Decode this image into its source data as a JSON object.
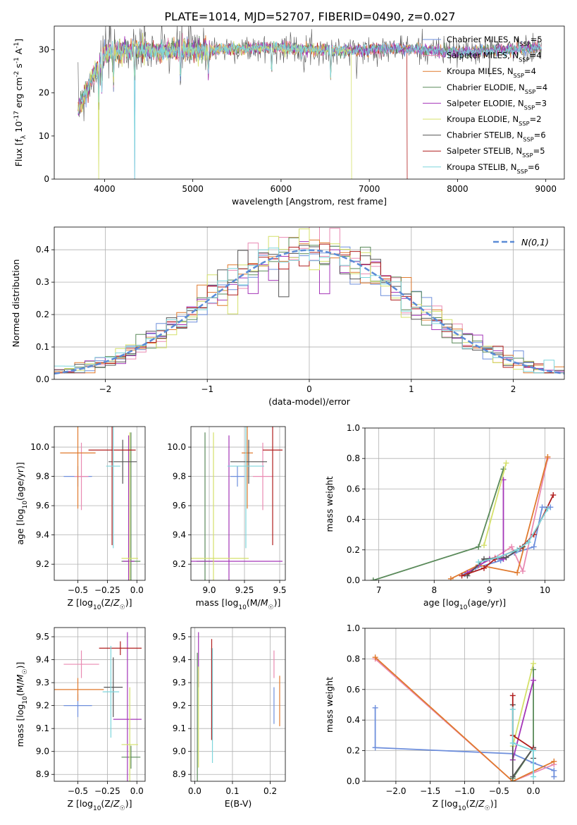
{
  "figure": {
    "title": "PLATE=1014, MJD=52707, FIBERID=0490, z=0.027"
  },
  "colors": {
    "Chabrier MILES": "#6e8fdc",
    "Salpeter MILES": "#e98ab2",
    "Kroupa MILES": "#e07a2e",
    "Chabrier ELODIE": "#5a8a5a",
    "Salpeter ELODIE": "#a436b8",
    "Kroupa ELODIE": "#d4e06a",
    "Chabrier STELIB": "#555555",
    "Salpeter STELIB": "#b01e1e",
    "Kroupa STELIB": "#7ed6dc"
  },
  "chart_data": [
    {
      "type": "line",
      "xlabel": "wavelength [Angstrom, rest frame]",
      "ylabel": "Flux [f_λ 10^-17 erg cm^-2 s^-1 A^-1]",
      "xlim": [
        3430,
        9210
      ],
      "ylim": [
        0,
        35.5
      ],
      "xticks": [
        4000,
        5000,
        6000,
        7000,
        8000,
        9000
      ],
      "yticks": [
        0,
        10,
        20,
        30
      ],
      "grid": false,
      "legend": "top-right",
      "legend_entries": [
        {
          "name": "Chabrier MILES",
          "nssp": "5"
        },
        {
          "name": "Salpeter MILES",
          "nssp": "4"
        },
        {
          "name": "Kroupa MILES",
          "nssp": "4"
        },
        {
          "name": "Chabrier ELODIE",
          "nssp": "4"
        },
        {
          "name": "Salpeter ELODIE",
          "nssp": "3"
        },
        {
          "name": "Kroupa ELODIE",
          "nssp": "2"
        },
        {
          "name": "Chabrier STELIB",
          "nssp": "6"
        },
        {
          "name": "Salpeter STELIB",
          "nssp": "5"
        },
        {
          "name": "Kroupa STELIB",
          "nssp": "6"
        }
      ],
      "continuum": [
        [
          3700,
          16
        ],
        [
          3760,
          19
        ],
        [
          3850,
          23
        ],
        [
          3950,
          27
        ],
        [
          4000,
          29
        ],
        [
          4100,
          29.5
        ],
        [
          4200,
          30
        ],
        [
          4400,
          30
        ],
        [
          4600,
          29.5
        ],
        [
          4800,
          30
        ],
        [
          5000,
          30
        ],
        [
          5200,
          30
        ],
        [
          5400,
          30.2
        ],
        [
          5600,
          30.2
        ],
        [
          5800,
          30.5
        ],
        [
          6000,
          30.5
        ],
        [
          6200,
          30.2
        ],
        [
          6400,
          30
        ],
        [
          6600,
          29.8
        ],
        [
          6800,
          29.8
        ],
        [
          7000,
          30
        ],
        [
          7200,
          30.2
        ],
        [
          7400,
          30.3
        ],
        [
          7600,
          30
        ],
        [
          7800,
          29.8
        ],
        [
          8000,
          29.5
        ],
        [
          8200,
          29.5
        ],
        [
          8400,
          30
        ],
        [
          8600,
          30
        ],
        [
          8800,
          30.3
        ],
        [
          8950,
          30.5
        ]
      ],
      "absorption_lines": [
        3934,
        3969,
        4102,
        4340,
        4861,
        5175,
        5893,
        6563
      ],
      "cutoffs": [
        {
          "series": "Salpeter STELIB",
          "x": 7430
        },
        {
          "series": "Kroupa ELODIE",
          "x": 6800
        }
      ]
    },
    {
      "type": "step",
      "xlabel": "(data-model)/error",
      "ylabel": "Normed distribution",
      "xlim": [
        -2.5,
        2.5
      ],
      "ylim": [
        0,
        0.47
      ],
      "xticks": [
        -2,
        -1,
        0,
        1,
        2
      ],
      "yticks": [
        0.0,
        0.1,
        0.2,
        0.3,
        0.4
      ],
      "grid": true,
      "legend": "top-right",
      "legend_label": "N(0,1)",
      "bin_width": 0.1,
      "bins_from": -2.5
    },
    {
      "type": "errorbar",
      "xlabel": "Z [log10(Z/Z☉)]",
      "ylabel": "age  [log10(age/yr)]",
      "xlim": [
        -0.7,
        0.07
      ],
      "ylim": [
        9.09,
        10.14
      ],
      "xticks": [
        -0.5,
        -0.25,
        0.0
      ],
      "yticks": [
        9.2,
        9.4,
        9.6,
        9.8,
        10.0
      ],
      "grid": true,
      "points": [
        {
          "series": "Chabrier MILES",
          "x": -0.5,
          "xerr": 0.12,
          "y": 9.8,
          "yerr": 0.07
        },
        {
          "series": "Salpeter MILES",
          "x": -0.47,
          "xerr": 0.06,
          "y": 9.8,
          "yerr": 0.23
        },
        {
          "series": "Kroupa MILES",
          "x": -0.5,
          "xerr": 0.15,
          "y": 9.96,
          "yerr": 0.38
        },
        {
          "series": "Chabrier ELODIE",
          "x": -0.05,
          "xerr": 0.08,
          "y": 9.22,
          "yerr": 0.88
        },
        {
          "series": "Salpeter ELODIE",
          "x": -0.07,
          "xerr": 0.05,
          "y": 9.22,
          "yerr": 0.86
        },
        {
          "series": "Kroupa ELODIE",
          "x": -0.06,
          "xerr": 0.07,
          "y": 9.24,
          "yerr": 0.86
        },
        {
          "series": "Chabrier STELIB",
          "x": -0.12,
          "xerr": 0.12,
          "y": 9.9,
          "yerr": 0.15
        },
        {
          "series": "Salpeter STELIB",
          "x": -0.21,
          "xerr": 0.2,
          "y": 9.98,
          "yerr": 0.65
        },
        {
          "series": "Kroupa STELIB",
          "x": -0.2,
          "xerr": 0.06,
          "y": 9.87,
          "yerr": 0.56
        }
      ]
    },
    {
      "type": "errorbar",
      "xlabel": "mass [log10(M/M☉)]",
      "ylabel": "",
      "xlim": [
        8.87,
        9.54
      ],
      "ylim": [
        9.09,
        10.14
      ],
      "xticks": [
        9.0,
        9.25,
        9.5
      ],
      "yticks": [
        9.2,
        9.4,
        9.6,
        9.8,
        10.0
      ],
      "grid": true,
      "points": [
        {
          "series": "Chabrier MILES",
          "x": 9.2,
          "xerr": 0.05,
          "y": 9.8,
          "yerr": 0.07
        },
        {
          "series": "Salpeter MILES",
          "x": 9.38,
          "xerr": 0.07,
          "y": 9.8,
          "yerr": 0.23
        },
        {
          "series": "Kroupa MILES",
          "x": 9.27,
          "xerr": 0.04,
          "y": 9.96,
          "yerr": 0.38
        },
        {
          "series": "Chabrier ELODIE",
          "x": 8.97,
          "xerr": 0.06,
          "y": 9.22,
          "yerr": 0.88
        },
        {
          "series": "Salpeter ELODIE",
          "x": 9.14,
          "xerr": 0.38,
          "y": 9.22,
          "yerr": 0.86
        },
        {
          "series": "Kroupa ELODIE",
          "x": 9.03,
          "xerr": 0.25,
          "y": 9.24,
          "yerr": 0.86
        },
        {
          "series": "Chabrier STELIB",
          "x": 9.28,
          "xerr": 0.13,
          "y": 9.9,
          "yerr": 0.15
        },
        {
          "series": "Salpeter STELIB",
          "x": 9.45,
          "xerr": 0.07,
          "y": 9.98,
          "yerr": 0.65
        },
        {
          "series": "Kroupa STELIB",
          "x": 9.26,
          "xerr": 0.13,
          "y": 9.87,
          "yerr": 0.56
        }
      ]
    },
    {
      "type": "line",
      "xlabel": "age  [log10(age/yr)]",
      "ylabel": "mass weight",
      "xlim": [
        6.75,
        10.35
      ],
      "ylim": [
        0,
        1.0
      ],
      "xticks": [
        7,
        8,
        9,
        10
      ],
      "yticks": [
        0.0,
        0.2,
        0.4,
        0.6,
        0.8,
        1.0
      ],
      "grid": true,
      "series": [
        {
          "name": "Chabrier MILES",
          "x": [
            8.55,
            8.75,
            9.2,
            9.45,
            9.8,
            9.95,
            10.1
          ],
          "y": [
            0.04,
            0.08,
            0.13,
            0.18,
            0.22,
            0.48,
            0.48
          ]
        },
        {
          "name": "Salpeter MILES",
          "x": [
            8.8,
            9.1,
            9.4,
            9.6,
            10.05
          ],
          "y": [
            0.1,
            0.15,
            0.22,
            0.06,
            0.8
          ]
        },
        {
          "name": "Kroupa MILES",
          "x": [
            8.3,
            8.8,
            9.5,
            10.05
          ],
          "y": [
            0.01,
            0.1,
            0.05,
            0.81
          ]
        },
        {
          "name": "Chabrier ELODIE",
          "x": [
            6.9,
            8.8,
            9.25
          ],
          "y": [
            0.0,
            0.22,
            0.73
          ]
        },
        {
          "name": "Salpeter ELODIE",
          "x": [
            8.6,
            9.0,
            9.25,
            9.25
          ],
          "y": [
            0.05,
            0.14,
            0.14,
            0.66
          ]
        },
        {
          "name": "Kroupa ELODIE",
          "x": [
            8.9,
            9.3
          ],
          "y": [
            0.23,
            0.77
          ]
        },
        {
          "name": "Chabrier STELIB",
          "x": [
            8.6,
            8.9,
            9.3,
            9.6
          ],
          "y": [
            0.03,
            0.14,
            0.15,
            0.22
          ]
        },
        {
          "name": "Salpeter STELIB",
          "x": [
            8.5,
            8.9,
            9.1,
            9.55,
            9.8,
            10.15
          ],
          "y": [
            0.03,
            0.08,
            0.14,
            0.21,
            0.3,
            0.56
          ]
        },
        {
          "name": "Kroupa STELIB",
          "x": [
            8.8,
            9.15,
            9.5,
            9.7,
            10.05
          ],
          "y": [
            0.12,
            0.15,
            0.2,
            0.25,
            0.47
          ]
        }
      ]
    },
    {
      "type": "errorbar",
      "xlabel": "Z [log10(Z/Z☉)]",
      "ylabel": "mass [log10(M/M☉)]",
      "xlim": [
        -0.7,
        0.07
      ],
      "ylim": [
        8.87,
        9.54
      ],
      "xticks": [
        -0.5,
        -0.25,
        0.0
      ],
      "yticks": [
        8.9,
        9.0,
        9.1,
        9.2,
        9.3,
        9.4,
        9.5
      ],
      "grid": true,
      "points": [
        {
          "series": "Chabrier MILES",
          "x": -0.5,
          "xerr": 0.12,
          "y": 9.2,
          "yerr": 0.05
        },
        {
          "series": "Salpeter MILES",
          "x": -0.47,
          "xerr": 0.15,
          "y": 9.38,
          "yerr": 0.06
        },
        {
          "series": "Kroupa MILES",
          "x": -0.5,
          "xerr": 0.22,
          "y": 9.27,
          "yerr": 0.05
        },
        {
          "series": "Chabrier ELODIE",
          "x": -0.05,
          "xerr": 0.08,
          "y": 8.975,
          "yerr": 0.05
        },
        {
          "series": "Salpeter ELODIE",
          "x": -0.08,
          "xerr": 0.12,
          "y": 9.14,
          "yerr": 0.38
        },
        {
          "series": "Kroupa ELODIE",
          "x": -0.06,
          "xerr": 0.07,
          "y": 9.03,
          "yerr": 0.25
        },
        {
          "series": "Chabrier STELIB",
          "x": -0.2,
          "xerr": 0.08,
          "y": 9.28,
          "yerr": 0.13
        },
        {
          "series": "Salpeter STELIB",
          "x": -0.14,
          "xerr": 0.18,
          "y": 9.45,
          "yerr": 0.03
        },
        {
          "series": "Kroupa STELIB",
          "x": -0.22,
          "xerr": 0.07,
          "y": 9.26,
          "yerr": 0.2
        }
      ]
    },
    {
      "type": "errorbar",
      "xlabel": "E(B-V)",
      "ylabel": "",
      "xlim": [
        -0.01,
        0.24
      ],
      "ylim": [
        8.87,
        9.54
      ],
      "xticks": [
        0.0,
        0.1,
        0.2
      ],
      "yticks": [
        8.9,
        9.0,
        9.1,
        9.2,
        9.3,
        9.4,
        9.5
      ],
      "grid": true,
      "points": [
        {
          "series": "Chabrier MILES",
          "x": 0.21,
          "xerr": 0.0,
          "y": 9.2,
          "yerr": 0.08
        },
        {
          "series": "Salpeter MILES",
          "x": 0.21,
          "xerr": 0.0,
          "y": 9.38,
          "yerr": 0.06
        },
        {
          "series": "Kroupa MILES",
          "x": 0.225,
          "xerr": 0.0,
          "y": 9.22,
          "yerr": 0.11
        },
        {
          "series": "Chabrier ELODIE",
          "x": 0.007,
          "xerr": 0.0,
          "y": 9.15,
          "yerr": 0.28
        },
        {
          "series": "Salpeter ELODIE",
          "x": 0.01,
          "xerr": 0.0,
          "y": 9.4,
          "yerr": 0.12
        },
        {
          "series": "Kroupa ELODIE",
          "x": 0.01,
          "xerr": 0.0,
          "y": 9.15,
          "yerr": 0.22
        },
        {
          "series": "Chabrier STELIB",
          "x": 0.045,
          "xerr": 0.0,
          "y": 9.25,
          "yerr": 0.2
        },
        {
          "series": "Salpeter STELIB",
          "x": 0.045,
          "xerr": 0.0,
          "y": 9.27,
          "yerr": 0.22
        },
        {
          "series": "Kroupa STELIB",
          "x": 0.047,
          "xerr": 0.0,
          "y": 9.2,
          "yerr": 0.25
        }
      ]
    },
    {
      "type": "line",
      "xlabel": "Z [log10(Z/Z☉)]",
      "ylabel": "mass weight",
      "xlim": [
        -2.45,
        0.45
      ],
      "ylim": [
        0,
        1.0
      ],
      "xticks": [
        -2.0,
        -1.5,
        -1.0,
        -0.5,
        0.0
      ],
      "yticks": [
        0.0,
        0.2,
        0.4,
        0.6,
        0.8,
        1.0
      ],
      "grid": true,
      "series": [
        {
          "name": "Chabrier MILES",
          "x": [
            -2.3,
            -2.3,
            -0.3,
            0.0,
            0.3,
            0.3
          ],
          "y": [
            0.48,
            0.22,
            0.18,
            0.12,
            0.07,
            0.03
          ]
        },
        {
          "name": "Salpeter MILES",
          "x": [
            -2.3,
            -0.3,
            0.3
          ],
          "y": [
            0.8,
            0.0,
            0.11
          ]
        },
        {
          "name": "Kroupa MILES",
          "x": [
            -2.3,
            -0.3,
            0.3
          ],
          "y": [
            0.81,
            0.0,
            0.13
          ]
        },
        {
          "name": "Chabrier ELODIE",
          "x": [
            -0.3,
            0.0,
            0.0
          ],
          "y": [
            0.02,
            0.22,
            0.73
          ]
        },
        {
          "name": "Salpeter ELODIE",
          "x": [
            -0.3,
            0.0
          ],
          "y": [
            0.14,
            0.66
          ]
        },
        {
          "name": "Kroupa ELODIE",
          "x": [
            -0.3,
            0.0
          ],
          "y": [
            0.23,
            0.77
          ]
        },
        {
          "name": "Chabrier STELIB",
          "x": [
            -0.3,
            -0.3,
            0.0,
            0.0
          ],
          "y": [
            0.5,
            0.03,
            0.22,
            0.15
          ]
        },
        {
          "name": "Salpeter STELIB",
          "x": [
            -0.3,
            -0.3,
            0.0
          ],
          "y": [
            0.56,
            0.3,
            0.21
          ]
        },
        {
          "name": "Kroupa STELIB",
          "x": [
            -0.3,
            -0.3,
            0.0,
            0.0
          ],
          "y": [
            0.47,
            0.25,
            0.2,
            0.03
          ]
        }
      ]
    }
  ]
}
